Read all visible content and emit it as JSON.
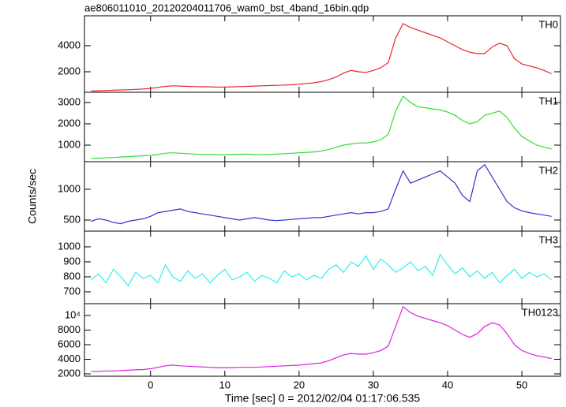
{
  "chart_data": [
    {
      "type": "line",
      "title": "ae806011010_20120204011706_wam0_bst_4band_16bin.qdp",
      "x": [
        -8,
        -7,
        -6,
        -5,
        -4,
        -3,
        -2,
        -1,
        0,
        1,
        2,
        3,
        4,
        5,
        6,
        7,
        8,
        9,
        10,
        11,
        12,
        13,
        14,
        15,
        16,
        17,
        18,
        19,
        20,
        21,
        22,
        23,
        24,
        25,
        26,
        27,
        28,
        29,
        30,
        31,
        32,
        33,
        34,
        35,
        36,
        37,
        38,
        39,
        40,
        41,
        42,
        43,
        44,
        45,
        46,
        47,
        48,
        49,
        50,
        51,
        52,
        53,
        54
      ],
      "series": [
        {
          "name": "TH0",
          "color": "#e8262a",
          "values": [
            520,
            540,
            560,
            580,
            600,
            620,
            650,
            680,
            720,
            800,
            880,
            920,
            900,
            880,
            860,
            850,
            840,
            820,
            830,
            840,
            860,
            880,
            900,
            920,
            940,
            960,
            980,
            1000,
            1050,
            1100,
            1150,
            1250,
            1400,
            1600,
            1900,
            2100,
            2000,
            1950,
            2100,
            2300,
            2700,
            4600,
            5700,
            5400,
            5200,
            5000,
            4800,
            4600,
            4300,
            4000,
            3700,
            3500,
            3400,
            3400,
            3900,
            4200,
            4000,
            3000,
            2600,
            2450,
            2300,
            2100,
            1850
          ]
        }
      ],
      "xlim": [
        -8.9,
        55.2
      ],
      "xticks": [
        0,
        10,
        20,
        30,
        40,
        50
      ],
      "ylim": [
        424,
        6300
      ],
      "yticks": [
        2000,
        4000
      ]
    },
    {
      "type": "line",
      "x": [
        -8,
        -7,
        -6,
        -5,
        -4,
        -3,
        -2,
        -1,
        0,
        1,
        2,
        3,
        4,
        5,
        6,
        7,
        8,
        9,
        10,
        11,
        12,
        13,
        14,
        15,
        16,
        17,
        18,
        19,
        20,
        21,
        22,
        23,
        24,
        25,
        26,
        27,
        28,
        29,
        30,
        31,
        32,
        33,
        34,
        35,
        36,
        37,
        38,
        39,
        40,
        41,
        42,
        43,
        44,
        45,
        46,
        47,
        48,
        49,
        50,
        51,
        52,
        53,
        54
      ],
      "series": [
        {
          "name": "TH1",
          "color": "#33dd33",
          "values": [
            380,
            390,
            400,
            420,
            440,
            460,
            480,
            500,
            520,
            560,
            620,
            640,
            620,
            600,
            580,
            560,
            560,
            550,
            550,
            560,
            570,
            580,
            560,
            550,
            560,
            580,
            600,
            620,
            640,
            660,
            680,
            720,
            800,
            900,
            1000,
            1050,
            1100,
            1100,
            1150,
            1250,
            1500,
            2600,
            3300,
            3000,
            2800,
            2750,
            2700,
            2650,
            2550,
            2400,
            2150,
            2000,
            2100,
            2400,
            2500,
            2600,
            2300,
            1800,
            1400,
            1200,
            1000,
            900,
            820
          ]
        }
      ],
      "xlim": [
        -8.9,
        55.2
      ],
      "xticks": [
        0,
        10,
        20,
        30,
        40,
        50
      ],
      "ylim": [
        222,
        3481
      ],
      "yticks": [
        1000,
        2000,
        3000
      ]
    },
    {
      "type": "line",
      "ylabel": "Counts/sec",
      "x": [
        -8,
        -7,
        -6,
        -5,
        -4,
        -3,
        -2,
        -1,
        0,
        1,
        2,
        3,
        4,
        5,
        6,
        7,
        8,
        9,
        10,
        11,
        12,
        13,
        14,
        15,
        16,
        17,
        18,
        19,
        20,
        21,
        22,
        23,
        24,
        25,
        26,
        27,
        28,
        29,
        30,
        31,
        32,
        33,
        34,
        35,
        36,
        37,
        38,
        39,
        40,
        41,
        42,
        43,
        44,
        45,
        46,
        47,
        48,
        49,
        50,
        51,
        52,
        53,
        54
      ],
      "series": [
        {
          "name": "TH2",
          "color": "#3333cc",
          "values": [
            480,
            520,
            500,
            460,
            440,
            480,
            500,
            520,
            560,
            620,
            640,
            660,
            680,
            640,
            620,
            600,
            580,
            560,
            540,
            520,
            500,
            520,
            540,
            520,
            500,
            490,
            500,
            510,
            520,
            530,
            540,
            540,
            560,
            580,
            600,
            620,
            600,
            620,
            620,
            640,
            680,
            1000,
            1300,
            1100,
            1150,
            1200,
            1250,
            1300,
            1200,
            1100,
            900,
            800,
            1300,
            1400,
            1200,
            1000,
            800,
            700,
            650,
            620,
            600,
            580,
            560
          ]
        }
      ],
      "xlim": [
        -8.9,
        55.2
      ],
      "xticks": [
        0,
        10,
        20,
        30,
        40,
        50
      ],
      "ylim": [
        320,
        1449
      ],
      "yticks": [
        500,
        1000
      ]
    },
    {
      "type": "line",
      "x": [
        -8,
        -7,
        -6,
        -5,
        -4,
        -3,
        -2,
        -1,
        0,
        1,
        2,
        3,
        4,
        5,
        6,
        7,
        8,
        9,
        10,
        11,
        12,
        13,
        14,
        15,
        16,
        17,
        18,
        19,
        20,
        21,
        22,
        23,
        24,
        25,
        26,
        27,
        28,
        29,
        30,
        31,
        32,
        33,
        34,
        35,
        36,
        37,
        38,
        39,
        40,
        41,
        42,
        43,
        44,
        45,
        46,
        47,
        48,
        49,
        50,
        51,
        52,
        53,
        54
      ],
      "series": [
        {
          "name": "TH3",
          "color": "#33eeee",
          "values": [
            780,
            820,
            760,
            850,
            800,
            740,
            830,
            790,
            810,
            760,
            880,
            800,
            770,
            840,
            790,
            820,
            760,
            810,
            850,
            780,
            800,
            830,
            770,
            810,
            790,
            760,
            840,
            800,
            820,
            780,
            810,
            790,
            850,
            880,
            830,
            900,
            870,
            940,
            850,
            920,
            880,
            830,
            860,
            900,
            840,
            870,
            810,
            950,
            880,
            820,
            860,
            800,
            840,
            790,
            830,
            760,
            810,
            850,
            790,
            830,
            800,
            820,
            780
          ]
        }
      ],
      "xlim": [
        -8.9,
        55.2
      ],
      "xticks": [
        0,
        10,
        20,
        30,
        40,
        50
      ],
      "ylim": [
        621,
        1105
      ],
      "yticks": [
        700,
        800,
        900,
        1000
      ]
    },
    {
      "type": "line",
      "xlabel": "Time [sec] 0 = 2012/02/04 01:17:06.535",
      "x": [
        -8,
        -7,
        -6,
        -5,
        -4,
        -3,
        -2,
        -1,
        0,
        1,
        2,
        3,
        4,
        5,
        6,
        7,
        8,
        9,
        10,
        11,
        12,
        13,
        14,
        15,
        16,
        17,
        18,
        19,
        20,
        21,
        22,
        23,
        24,
        25,
        26,
        27,
        28,
        29,
        30,
        31,
        32,
        33,
        34,
        35,
        36,
        37,
        38,
        39,
        40,
        41,
        42,
        43,
        44,
        45,
        46,
        47,
        48,
        49,
        50,
        51,
        52,
        53,
        54
      ],
      "series": [
        {
          "name": "TH0123",
          "color": "#dd22dd",
          "values": [
            2300,
            2350,
            2400,
            2400,
            2450,
            2500,
            2550,
            2600,
            2700,
            2900,
            3100,
            3200,
            3100,
            3050,
            3000,
            2950,
            2900,
            2850,
            2850,
            2850,
            2900,
            2900,
            2900,
            2950,
            3000,
            3050,
            3100,
            3150,
            3200,
            3300,
            3400,
            3500,
            3800,
            4200,
            4600,
            4800,
            4700,
            4700,
            4900,
            5200,
            5800,
            8500,
            11200,
            10400,
            9900,
            9600,
            9300,
            9000,
            8600,
            8000,
            7400,
            7000,
            7500,
            8500,
            9000,
            8700,
            7500,
            6000,
            5200,
            4800,
            4500,
            4300,
            4100
          ]
        }
      ],
      "xlim": [
        -8.9,
        55.2
      ],
      "xticks": [
        0,
        10,
        20,
        30,
        40,
        50
      ],
      "ylim": [
        1676,
        11620
      ],
      "yticks": [
        2000,
        4000,
        6000,
        8000,
        {
          "value": 10000,
          "label": "10⁴"
        }
      ]
    }
  ]
}
